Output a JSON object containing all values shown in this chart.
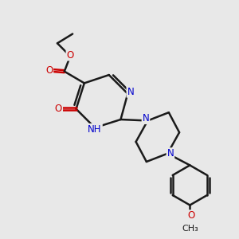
{
  "bg_color": "#e8e8e8",
  "bond_color": "#1a1a1a",
  "bond_width": 1.8,
  "atom_colors": {
    "N": "#0000cc",
    "O": "#cc0000",
    "C": "#1a1a1a"
  },
  "font_size": 8.5,
  "xlim": [
    0,
    10
  ],
  "ylim": [
    0,
    10
  ]
}
